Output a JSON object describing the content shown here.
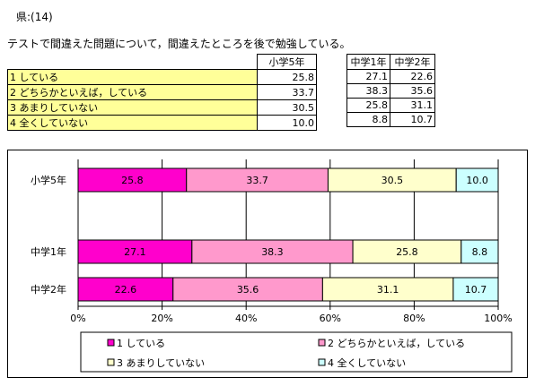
{
  "page": {
    "heading": "県:(14)",
    "question": "テストで間違えた問題について，間違えたところを後で勉強している。"
  },
  "table": {
    "headers": {
      "g5": "小学5年",
      "m1": "中学1年",
      "m2": "中学2年"
    },
    "rows": [
      {
        "label": "1  している",
        "g5": "25.8",
        "m1": "27.1",
        "m2": "22.6"
      },
      {
        "label": "2  どちらかといえば，している",
        "g5": "33.7",
        "m1": "38.3",
        "m2": "35.6"
      },
      {
        "label": "3  あまりしていない",
        "g5": "30.5",
        "m1": "25.8",
        "m2": "31.1"
      },
      {
        "label": "4  全くしていない",
        "g5": "10.0",
        "m1": "8.8",
        "m2": "10.7"
      }
    ]
  },
  "colors": {
    "s1": "#ff00cc",
    "s2": "#ff99cc",
    "s3": "#ffffcc",
    "s4": "#ccffff",
    "table_label_bg": "#ffff99"
  },
  "chart_data": {
    "type": "bar",
    "orientation": "horizontal",
    "stacked": true,
    "categories": [
      "小学5年",
      "中学1年",
      "中学2年"
    ],
    "series": [
      {
        "name": "1  している",
        "values": [
          25.8,
          27.1,
          22.6
        ]
      },
      {
        "name": "2  どちらかといえば，している",
        "values": [
          33.7,
          38.3,
          35.6
        ]
      },
      {
        "name": "3  あまりしていない",
        "values": [
          30.5,
          25.8,
          31.1
        ]
      },
      {
        "name": "4  全くしていない",
        "values": [
          10.0,
          8.8,
          10.7
        ]
      }
    ],
    "value_labels": [
      [
        "25.8",
        "33.7",
        "30.5",
        "10.0"
      ],
      [
        "27.1",
        "38.3",
        "25.8",
        "8.8"
      ],
      [
        "22.6",
        "35.6",
        "31.1",
        "10.7"
      ]
    ],
    "xlim": [
      0,
      100
    ],
    "xticks": [
      "0%",
      "20%",
      "40%",
      "60%",
      "80%",
      "100%"
    ],
    "grid": true,
    "legend": "bottom"
  }
}
